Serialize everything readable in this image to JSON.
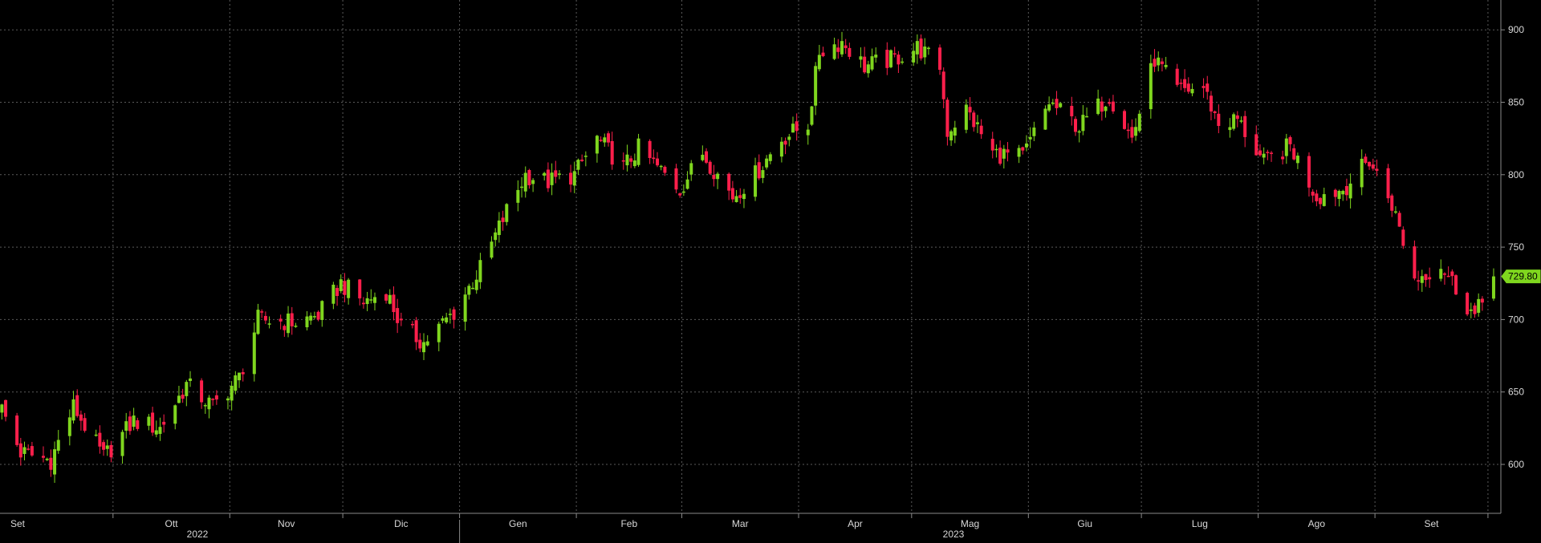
{
  "chart_data": {
    "type": "candlestick",
    "title": "",
    "xlabel": "",
    "ylabel": "",
    "ylim": [
      565,
      920
    ],
    "y_ticks": [
      600,
      650,
      700,
      750,
      800,
      850,
      900
    ],
    "grid": true,
    "month_labels": [
      "Set",
      "Ott",
      "Nov",
      "Dic",
      "Gen",
      "Feb",
      "Mar",
      "Apr",
      "Mag",
      "Giu",
      "Lug",
      "Ago",
      "Set"
    ],
    "year_labels": [
      "2022",
      "2023"
    ],
    "last_price": 729.8,
    "last_price_label": "729.80",
    "colors": {
      "up": "#7fd61e",
      "down": "#ff1f4b",
      "grid": "#5a5a5a",
      "text": "#d8d8d8",
      "background": "#000000"
    },
    "anchors": [
      [
        "2022-09-01",
        638
      ],
      [
        "2022-09-06",
        608
      ],
      [
        "2022-09-14",
        603
      ],
      [
        "2022-09-20",
        640
      ],
      [
        "2022-09-28",
        605
      ],
      [
        "2022-10-06",
        630
      ],
      [
        "2022-10-13",
        625
      ],
      [
        "2022-10-20",
        655
      ],
      [
        "2022-10-27",
        640
      ],
      [
        "2022-11-03",
        660
      ],
      [
        "2022-11-08",
        700
      ],
      [
        "2022-11-18",
        698
      ],
      [
        "2022-11-24",
        703
      ],
      [
        "2022-11-30",
        725
      ],
      [
        "2022-12-06",
        712
      ],
      [
        "2022-12-12",
        720
      ],
      [
        "2022-12-16",
        695
      ],
      [
        "2022-12-22",
        684
      ],
      [
        "2022-12-30",
        705
      ],
      [
        "2023-01-06",
        735
      ],
      [
        "2023-01-13",
        775
      ],
      [
        "2023-01-18",
        800
      ],
      [
        "2023-01-24",
        795
      ],
      [
        "2023-01-31",
        800
      ],
      [
        "2023-02-06",
        825
      ],
      [
        "2023-02-13",
        805
      ],
      [
        "2023-02-17",
        818
      ],
      [
        "2023-02-22",
        805
      ],
      [
        "2023-02-28",
        790
      ],
      [
        "2023-03-06",
        815
      ],
      [
        "2023-03-14",
        785
      ],
      [
        "2023-03-20",
        800
      ],
      [
        "2023-03-27",
        825
      ],
      [
        "2023-04-03",
        835
      ],
      [
        "2023-04-06",
        885
      ],
      [
        "2023-04-12",
        892
      ],
      [
        "2023-04-18",
        875
      ],
      [
        "2023-04-26",
        880
      ],
      [
        "2023-05-02",
        888
      ],
      [
        "2023-05-08",
        875
      ],
      [
        "2023-05-10",
        830
      ],
      [
        "2023-05-15",
        845
      ],
      [
        "2023-05-22",
        815
      ],
      [
        "2023-05-30",
        812
      ],
      [
        "2023-06-06",
        850
      ],
      [
        "2023-06-14",
        833
      ],
      [
        "2023-06-22",
        855
      ],
      [
        "2023-06-28",
        825
      ],
      [
        "2023-07-04",
        880
      ],
      [
        "2023-07-10",
        858
      ],
      [
        "2023-07-17",
        860
      ],
      [
        "2023-07-21",
        835
      ],
      [
        "2023-07-26",
        838
      ],
      [
        "2023-08-02",
        808
      ],
      [
        "2023-08-09",
        820
      ],
      [
        "2023-08-16",
        785
      ],
      [
        "2023-08-23",
        790
      ],
      [
        "2023-08-30",
        810
      ],
      [
        "2023-09-05",
        780
      ],
      [
        "2023-09-11",
        728
      ],
      [
        "2023-09-18",
        738
      ],
      [
        "2023-09-22",
        722
      ],
      [
        "2023-09-27",
        702
      ],
      [
        "2023-10-02",
        728
      ]
    ]
  }
}
